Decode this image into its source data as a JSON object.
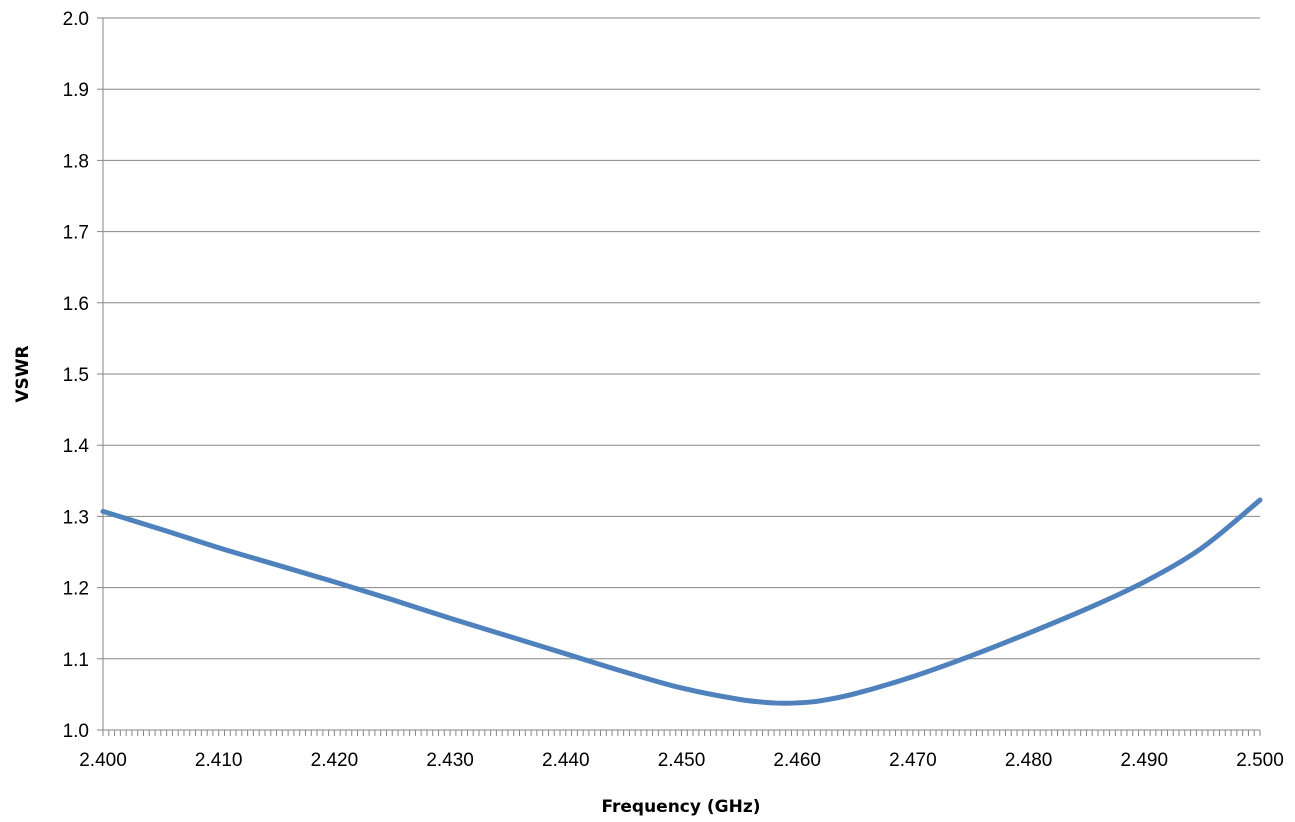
{
  "chart_data": {
    "type": "line",
    "title": "",
    "xlabel": "Frequency (GHz)",
    "ylabel": "VSWR",
    "xlim": [
      2.4,
      2.5
    ],
    "ylim": [
      1.0,
      2.0
    ],
    "x_ticks": [
      "2.400",
      "2.410",
      "2.420",
      "2.430",
      "2.440",
      "2.450",
      "2.460",
      "2.470",
      "2.480",
      "2.490",
      "2.500"
    ],
    "y_ticks": [
      "1.0",
      "1.1",
      "1.2",
      "1.3",
      "1.4",
      "1.5",
      "1.6",
      "1.7",
      "1.8",
      "1.9",
      "2.0"
    ],
    "grid": "horizontal",
    "legend": "none",
    "colors": {
      "line": "#4f81bd",
      "grid": "#868686",
      "axis": "#868686"
    },
    "series": [
      {
        "x": [
          2.4,
          2.405,
          2.41,
          2.415,
          2.42,
          2.425,
          2.43,
          2.435,
          2.44,
          2.445,
          2.45,
          2.455,
          2.458,
          2.46,
          2.462,
          2.465,
          2.47,
          2.475,
          2.48,
          2.485,
          2.49,
          2.495,
          2.5
        ],
        "values": [
          1.307,
          1.282,
          1.256,
          1.232,
          1.208,
          1.183,
          1.157,
          1.132,
          1.107,
          1.082,
          1.059,
          1.043,
          1.038,
          1.038,
          1.041,
          1.051,
          1.075,
          1.104,
          1.136,
          1.17,
          1.208,
          1.256,
          1.323
        ]
      }
    ]
  }
}
